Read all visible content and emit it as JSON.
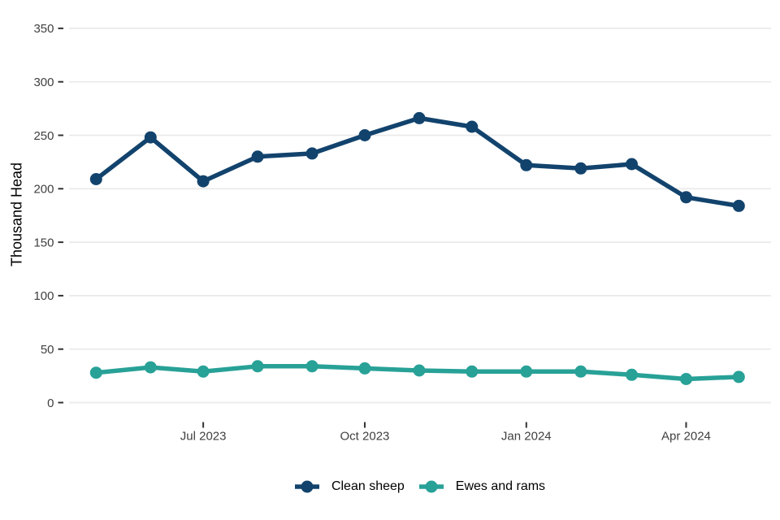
{
  "chart_data": {
    "type": "line",
    "title": "",
    "ylabel": "Thousand Head",
    "xlabel": "",
    "ylim": [
      0,
      350
    ],
    "y_ticks": [
      0,
      50,
      100,
      150,
      200,
      250,
      300,
      350
    ],
    "x": [
      "2023-05-01",
      "2023-06-01",
      "2023-07-01",
      "2023-08-01",
      "2023-09-01",
      "2023-10-01",
      "2023-11-01",
      "2023-12-01",
      "2024-01-01",
      "2024-02-01",
      "2024-03-01",
      "2024-04-01",
      "2024-05-01"
    ],
    "x_labels": [
      "May 2023",
      "Jun 2023",
      "Jul 2023",
      "Aug 2023",
      "Sep 2023",
      "Oct 2023",
      "Nov 2023",
      "Dec 2023",
      "Jan 2024",
      "Feb 2024",
      "Mar 2024",
      "Apr 2024",
      "May 2024"
    ],
    "x_ticks": [
      {
        "label": "Jul 2023",
        "date": "2023-07-01"
      },
      {
        "label": "Oct 2023",
        "date": "2023-10-01"
      },
      {
        "label": "Jan 2024",
        "date": "2024-01-01"
      },
      {
        "label": "Apr 2024",
        "date": "2024-04-01"
      }
    ],
    "series": [
      {
        "name": "Clean sheep",
        "color": "#12436D",
        "values": [
          209,
          248,
          207,
          230,
          233,
          250,
          266,
          258,
          222,
          219,
          223,
          192,
          184
        ]
      },
      {
        "name": "Ewes and rams",
        "color": "#28A197",
        "values": [
          28,
          33,
          29,
          34,
          34,
          32,
          30,
          29,
          29,
          29,
          26,
          22,
          24
        ]
      }
    ],
    "grid": "horizontal-only",
    "legend_position": "bottom-center",
    "style": {
      "grid_color": "#EAEAEA",
      "tick_mark_color": "#333333",
      "tick_label_color": "#404040",
      "axis_title_color": "#000000",
      "background": "#FFFFFF"
    }
  }
}
